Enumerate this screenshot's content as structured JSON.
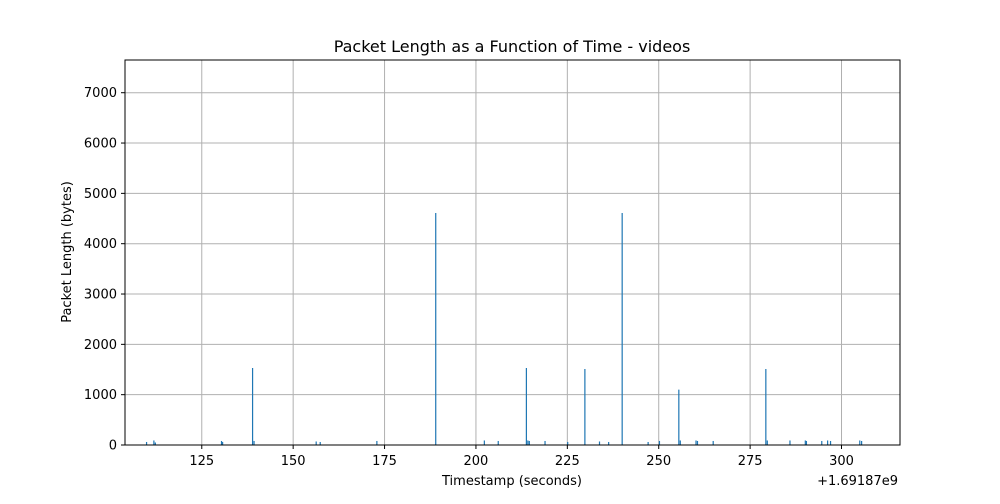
{
  "chart_data": {
    "type": "bar",
    "title": "Packet Length as a Function of Time - videos",
    "xlabel": "Timestamp (seconds)",
    "ylabel": "Packet Length (bytes)",
    "x_offset_label": "+1.69187e9",
    "xlim": [
      104,
      316
    ],
    "ylim": [
      0,
      7650
    ],
    "x_ticks": [
      125,
      150,
      175,
      200,
      225,
      250,
      275,
      300
    ],
    "y_ticks": [
      0,
      1000,
      2000,
      3000,
      4000,
      5000,
      6000,
      7000
    ],
    "grid": true,
    "bar_color": "#1f77b4",
    "x": [
      109.9,
      111.9,
      112.3,
      130.4,
      130.7,
      138.9,
      139.3,
      156.3,
      157.4,
      172.9,
      189.0,
      202.3,
      206.1,
      213.8,
      214.2,
      214.6,
      218.9,
      225.1,
      229.8,
      233.8,
      236.3,
      240.0,
      247.1,
      250.2,
      255.5,
      255.9,
      260.2,
      260.6,
      264.9,
      279.3,
      279.7,
      285.9,
      290.1,
      290.4,
      294.6,
      296.2,
      297.0,
      305.0,
      305.5
    ],
    "values": [
      60,
      90,
      50,
      80,
      60,
      1530,
      80,
      70,
      60,
      80,
      4610,
      90,
      80,
      1530,
      90,
      80,
      80,
      60,
      1510,
      70,
      60,
      4610,
      60,
      80,
      1100,
      90,
      90,
      80,
      80,
      1510,
      90,
      90,
      90,
      80,
      80,
      90,
      80,
      90,
      80
    ]
  }
}
